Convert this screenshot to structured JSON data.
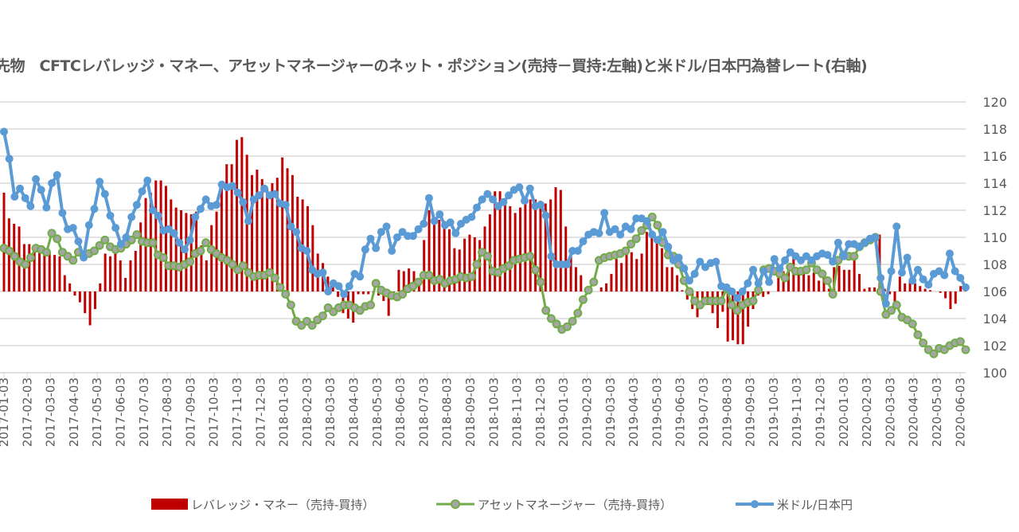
{
  "title": "先物　CFTCレバレッジ・マネー、アセットマネージャーのネット・ポジション(売持－買持:左軸)と米ドル/日本円為替レート(右軸)",
  "chart_data": {
    "type": "bar+line",
    "title": "先物　CFTCレバレッジ・マネー、アセットマネージャーのネット・ポジション(売持－買持:左軸)と米ドル/日本円為替レート(右軸)",
    "x_tick_labels": [
      "2017-01-03",
      "2017-02-03",
      "2017-03-03",
      "2017-04-03",
      "2017-05-03",
      "2017-06-03",
      "2017-07-03",
      "2017-08-03",
      "2017-09-03",
      "2017-10-03",
      "2017-11-03",
      "2017-12-03",
      "2018-01-03",
      "2018-02-03",
      "2018-03-03",
      "2018-04-03",
      "2018-05-03",
      "2018-06-03",
      "2018-07-03",
      "2018-08-03",
      "2018-09-03",
      "2018-10-03",
      "2018-11-03",
      "2018-12-03",
      "2019-01-03",
      "2019-02-03",
      "2019-03-03",
      "2019-04-03",
      "2019-05-03",
      "2019-06-03",
      "2019-07-03",
      "2019-08-03",
      "2019-09-03",
      "2019-10-03",
      "2019-11-03",
      "2019-12-03",
      "2020-01-03",
      "2020-02-03",
      "2020-03-03",
      "2020-04-03",
      "2020-05-03",
      "2020-06-03"
    ],
    "right_axis": {
      "ylim": [
        100,
        120
      ],
      "ticks": [
        "100",
        "102",
        "104",
        "106",
        "108",
        "110",
        "112",
        "114",
        "116",
        "118",
        "120"
      ]
    },
    "left_axis_zero_on_right_scale": 106,
    "grid": true,
    "legend_placement": "bottom",
    "series": [
      {
        "name": "レバレッジ・マネー（売持-買持）",
        "type": "bar",
        "axis": "left",
        "color": "#c00000",
        "values": [
          113.3,
          111.4,
          111.0,
          110.8,
          109.5,
          109.5,
          109.3,
          109.4,
          109.0,
          108.9,
          108.7,
          108.6,
          107.2,
          106.6,
          105.7,
          105.2,
          104.4,
          103.5,
          104.7,
          106.6,
          108.8,
          108.6,
          109.1,
          108.3,
          107.0,
          108.3,
          109.0,
          111.1,
          112.9,
          113.3,
          114.2,
          114.2,
          113.8,
          112.8,
          112.2,
          112.0,
          111.8,
          111.7,
          111.9,
          109.4,
          108.3,
          110.9,
          111.9,
          114.0,
          115.4,
          115.4,
          117.2,
          117.4,
          116.1,
          114.6,
          115.0,
          114.3,
          113.6,
          114.0,
          114.4,
          115.9,
          115.1,
          114.6,
          113.0,
          112.8,
          112.3,
          110.9,
          108.8,
          108.1,
          107.1,
          106.4,
          105.6,
          104.4,
          104.0,
          103.7,
          105.8,
          105.8,
          105.8,
          105.8,
          105.7,
          105.3,
          104.2,
          105.7,
          107.6,
          107.5,
          107.7,
          107.5,
          107.0,
          109.8,
          112.0,
          111.5,
          111.3,
          111.2,
          110.6,
          109.2,
          109.1,
          109.9,
          110.2,
          110.0,
          109.8,
          110.8,
          111.7,
          113.4,
          113.4,
          112.8,
          112.3,
          111.8,
          112.2,
          113.0,
          112.8,
          112.8,
          112.7,
          112.5,
          112.8,
          113.7,
          113.5,
          110.8,
          108.9,
          107.8,
          107.2,
          106.2,
          106.1,
          106.0,
          106.3,
          106.6,
          107.3,
          108.4,
          108.1,
          108.9,
          108.9,
          108.4,
          108.8,
          110.4,
          110.5,
          110.0,
          109.2,
          107.8,
          107.8,
          107.2,
          106.1,
          105.4,
          104.7,
          104.1,
          105.0,
          105.0,
          104.4,
          103.3,
          104.5,
          102.3,
          102.4,
          102.1,
          102.1,
          103.4,
          104.7,
          105.7,
          105.6,
          105.8,
          106.0,
          107.0,
          107.5,
          108.0,
          108.6,
          107.6,
          107.4,
          107.2,
          107.4,
          106.8,
          107.2,
          106.2,
          107.8,
          107.9,
          107.6,
          107.6,
          108.4,
          107.3,
          106.2,
          106.3,
          106.3,
          110.2,
          106.2,
          105.8,
          104.9,
          107.1,
          106.6,
          106.9,
          106.6,
          106.4,
          106.2,
          106.1,
          106.0,
          105.9,
          105.5,
          104.7,
          105.1,
          106.4,
          106.1
        ]
      },
      {
        "name": "アセットマネージャー（売持-買持）",
        "type": "line",
        "axis": "left",
        "color": "#70ad47",
        "marker_color": "#a5a5a5",
        "values": [
          109.2,
          109.0,
          108.6,
          108.2,
          108.0,
          108.5,
          109.2,
          109.1,
          108.9,
          110.3,
          109.9,
          108.9,
          108.6,
          108.3,
          108.9,
          108.7,
          108.8,
          109.0,
          109.4,
          109.8,
          109.3,
          109.1,
          109.2,
          109.5,
          109.8,
          110.2,
          109.7,
          109.6,
          109.6,
          108.7,
          108.5,
          107.9,
          107.9,
          107.8,
          108.0,
          108.2,
          108.8,
          109.0,
          109.6,
          109.1,
          108.8,
          108.5,
          108.3,
          108.0,
          107.6,
          107.9,
          107.4,
          107.1,
          107.2,
          107.2,
          107.4,
          107.0,
          106.3,
          105.8,
          105.0,
          103.8,
          103.5,
          103.8,
          103.5,
          103.9,
          104.2,
          104.8,
          104.5,
          104.8,
          105.0,
          105.0,
          104.8,
          104.6,
          104.9,
          105.0,
          106.6,
          106.1,
          105.9,
          105.7,
          105.6,
          105.8,
          106.2,
          106.4,
          106.7,
          107.2,
          107.2,
          106.8,
          106.9,
          106.6,
          106.8,
          106.9,
          107.1,
          107.0,
          107.1,
          108.0,
          108.9,
          108.6,
          107.5,
          107.4,
          107.7,
          107.9,
          108.3,
          108.4,
          108.5,
          108.6,
          107.6,
          106.7,
          104.6,
          104.0,
          103.6,
          103.2,
          103.4,
          103.8,
          104.4,
          105.4,
          106.1,
          106.7,
          108.3,
          108.5,
          108.6,
          108.7,
          108.8,
          109.0,
          109.5,
          109.9,
          110.5,
          110.9,
          111.5,
          110.9,
          109.6,
          108.7,
          108.6,
          108.0,
          106.8,
          106.0,
          105.3,
          105.0,
          105.3,
          105.3,
          105.3,
          105.3,
          106.2,
          105.0,
          104.6,
          105.0,
          105.2,
          105.3,
          106.1,
          107.6,
          107.7,
          107.5,
          107.3,
          107.0,
          107.8,
          107.5,
          107.5,
          107.6,
          108.1,
          107.6,
          107.3,
          106.8,
          105.8,
          108.3,
          108.7,
          108.6,
          108.6,
          109.3,
          109.6,
          109.8,
          110.0,
          106.0,
          104.3,
          104.6,
          105.0,
          104.1,
          103.9,
          103.6,
          102.8,
          102.2,
          101.7,
          101.4,
          101.8,
          101.7,
          102.0,
          102.2,
          102.3,
          101.7
        ]
      },
      {
        "name": "米ドル/日本円",
        "type": "line",
        "axis": "right",
        "color": "#5b9bd5",
        "values": [
          117.8,
          115.8,
          113.0,
          113.6,
          112.9,
          112.3,
          114.3,
          113.5,
          112.2,
          114.0,
          114.6,
          111.8,
          110.6,
          110.7,
          109.7,
          108.5,
          110.9,
          112.1,
          114.1,
          113.2,
          111.6,
          110.7,
          109.5,
          110.0,
          111.5,
          112.4,
          113.4,
          114.2,
          112.0,
          111.6,
          110.5,
          110.6,
          110.3,
          109.6,
          109.1,
          109.8,
          111.5,
          112.1,
          112.8,
          112.3,
          112.4,
          113.9,
          113.7,
          113.8,
          113.3,
          112.6,
          111.2,
          112.8,
          113.1,
          113.6,
          113.1,
          113.2,
          112.5,
          112.4,
          110.8,
          110.4,
          109.2,
          109.0,
          107.6,
          107.3,
          107.4,
          106.0,
          106.6,
          106.4,
          105.8,
          106.4,
          107.3,
          107.1,
          109.1,
          109.9,
          109.2,
          110.4,
          110.8,
          109.0,
          110.0,
          110.4,
          110.1,
          110.1,
          110.6,
          111.0,
          112.9,
          111.2,
          111.7,
          110.9,
          111.1,
          110.3,
          111.0,
          111.3,
          111.5,
          112.2,
          112.8,
          113.2,
          112.8,
          112.3,
          112.6,
          113.1,
          113.5,
          113.7,
          112.7,
          113.6,
          112.3,
          112.4,
          111.6,
          108.6,
          108.0,
          108.0,
          108.0,
          109.0,
          109.0,
          109.7,
          110.2,
          110.4,
          110.3,
          111.8,
          110.4,
          110.6,
          110.2,
          110.8,
          110.6,
          111.4,
          111.4,
          111.2,
          110.2,
          109.8,
          110.4,
          109.3,
          108.3,
          108.5,
          107.7,
          106.8,
          107.3,
          108.2,
          107.8,
          108.1,
          108.2,
          106.4,
          106.3,
          106.0,
          105.5,
          106.0,
          106.6,
          107.6,
          106.6,
          107.5,
          106.7,
          108.4,
          107.7,
          108.3,
          108.9,
          108.6,
          108.3,
          108.6,
          108.3,
          108.6,
          108.8,
          108.7,
          108.2,
          109.6,
          108.6,
          109.5,
          109.5,
          109.3,
          109.6,
          109.9,
          110.0,
          107.0,
          105.1,
          107.5,
          110.8,
          107.4,
          108.5,
          106.8,
          107.6,
          106.9,
          106.5,
          107.3,
          107.5,
          107.2,
          108.8,
          107.5,
          107.0,
          106.3
        ]
      }
    ]
  }
}
